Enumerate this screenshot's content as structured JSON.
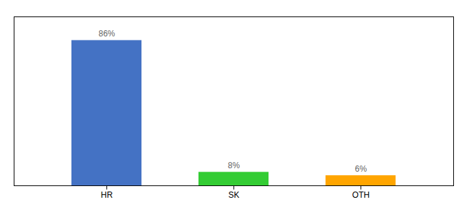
{
  "chart_data": {
    "type": "bar",
    "categories": [
      "HR",
      "SK",
      "OTH"
    ],
    "values": [
      86,
      8,
      6
    ],
    "value_labels": [
      "86%",
      "8%",
      "6%"
    ],
    "colors": [
      "#4472C4",
      "#33CC33",
      "#FFA500"
    ],
    "ylim": [
      0,
      100
    ],
    "data_labels": true,
    "tick_labels": "x"
  }
}
